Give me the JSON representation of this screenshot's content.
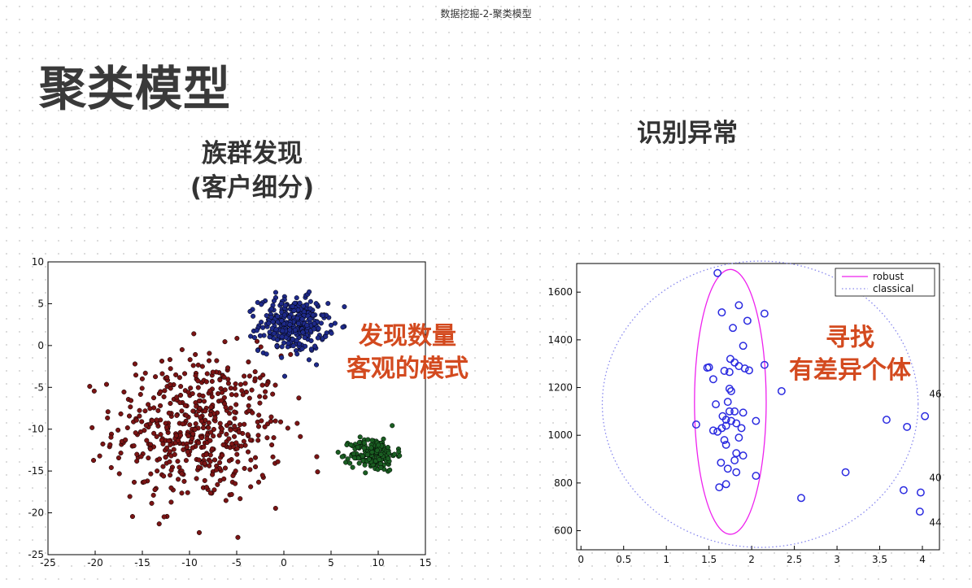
{
  "header": "数据挖掘-2-聚类模型",
  "title": "聚类模型",
  "left_heading": [
    "族群发现",
    "(客户细分)"
  ],
  "right_heading": "识别异常",
  "left_callout": [
    "发现数量",
    "客观的模式"
  ],
  "right_callout": [
    "寻找",
    "有差异个体"
  ],
  "colors": {
    "callout": "#d34a1f",
    "cluster_red": "#7a1414",
    "cluster_blue": "#1e2a8a",
    "cluster_green": "#1a5e22",
    "outlier_circle": "#2a2ae0",
    "robust_ellipse": "#ee22ee",
    "classical_ellipse": "#8888ee"
  },
  "chart_data": [
    {
      "type": "scatter",
      "title": "",
      "xlabel": "",
      "ylabel": "",
      "xlim": [
        -25,
        15
      ],
      "ylim": [
        -25,
        10
      ],
      "xticks": [
        -25,
        -20,
        -15,
        -10,
        -5,
        0,
        5,
        10,
        15
      ],
      "yticks": [
        10,
        5,
        0,
        -5,
        -10,
        -15,
        -20,
        -25
      ],
      "grid": false,
      "clusters": [
        {
          "color": "cluster_red",
          "center": [
            -9,
            -10
          ],
          "spread": [
            4.5,
            4.5
          ],
          "count": 520
        },
        {
          "color": "cluster_blue",
          "center": [
            1,
            2.5
          ],
          "spread": [
            1.8,
            1.6
          ],
          "count": 330
        },
        {
          "color": "cluster_green",
          "center": [
            9.5,
            -13
          ],
          "spread": [
            1.2,
            1.0
          ],
          "count": 180
        }
      ]
    },
    {
      "type": "scatter",
      "title": "",
      "xlabel": "",
      "ylabel": "",
      "xlim": [
        -0.05,
        4.2
      ],
      "ylim": [
        520,
        1720
      ],
      "xticks": [
        0,
        0.5,
        1,
        1.5,
        2,
        2.5,
        3,
        3.5,
        4
      ],
      "yticks": [
        600,
        800,
        1000,
        1200,
        1400,
        1600
      ],
      "legend": {
        "position": "top-right",
        "entries": [
          "robust",
          "classical"
        ]
      },
      "ellipses": [
        {
          "name": "robust",
          "center": [
            1.75,
            1140
          ],
          "rx": 0.42,
          "ry": 555,
          "style": "solid"
        },
        {
          "name": "classical",
          "center": [
            2.1,
            1130
          ],
          "rx": 1.85,
          "ry": 600,
          "style": "dotted"
        }
      ],
      "points": [
        [
          1.6,
          1680
        ],
        [
          1.65,
          1515
        ],
        [
          1.85,
          1545
        ],
        [
          1.95,
          1480
        ],
        [
          2.15,
          1510
        ],
        [
          1.78,
          1450
        ],
        [
          1.9,
          1375
        ],
        [
          1.75,
          1320
        ],
        [
          1.8,
          1305
        ],
        [
          1.85,
          1290
        ],
        [
          1.92,
          1280
        ],
        [
          1.97,
          1272
        ],
        [
          1.5,
          1285
        ],
        [
          1.48,
          1283
        ],
        [
          1.68,
          1270
        ],
        [
          1.74,
          1265
        ],
        [
          1.55,
          1235
        ],
        [
          2.15,
          1295
        ],
        [
          1.74,
          1195
        ],
        [
          1.76,
          1185
        ],
        [
          1.72,
          1140
        ],
        [
          1.58,
          1130
        ],
        [
          1.74,
          1100
        ],
        [
          1.8,
          1100
        ],
        [
          1.9,
          1095
        ],
        [
          1.66,
          1080
        ],
        [
          1.7,
          1065
        ],
        [
          1.76,
          1060
        ],
        [
          1.82,
          1050
        ],
        [
          1.88,
          1030
        ],
        [
          1.7,
          1040
        ],
        [
          1.65,
          1030
        ],
        [
          1.55,
          1020
        ],
        [
          1.6,
          1015
        ],
        [
          1.35,
          1045
        ],
        [
          2.05,
          1060
        ],
        [
          1.68,
          980
        ],
        [
          1.7,
          960
        ],
        [
          1.85,
          990
        ],
        [
          1.82,
          925
        ],
        [
          1.9,
          915
        ],
        [
          1.8,
          895
        ],
        [
          1.64,
          885
        ],
        [
          1.72,
          860
        ],
        [
          1.82,
          845
        ],
        [
          2.05,
          830
        ],
        [
          1.7,
          795
        ],
        [
          1.62,
          782
        ],
        [
          2.35,
          1185
        ],
        [
          3.58,
          1065
        ],
        [
          3.82,
          1035
        ],
        [
          4.03,
          1080
        ],
        [
          3.1,
          845
        ],
        [
          3.78,
          770
        ],
        [
          3.98,
          760
        ],
        [
          3.97,
          680
        ],
        [
          2.58,
          737
        ]
      ],
      "labels": [
        {
          "text": "46",
          "at": [
            4.08,
            1160
          ]
        },
        {
          "text": "40",
          "at": [
            4.08,
            808
          ]
        },
        {
          "text": "44",
          "at": [
            4.08,
            620
          ]
        }
      ]
    }
  ]
}
